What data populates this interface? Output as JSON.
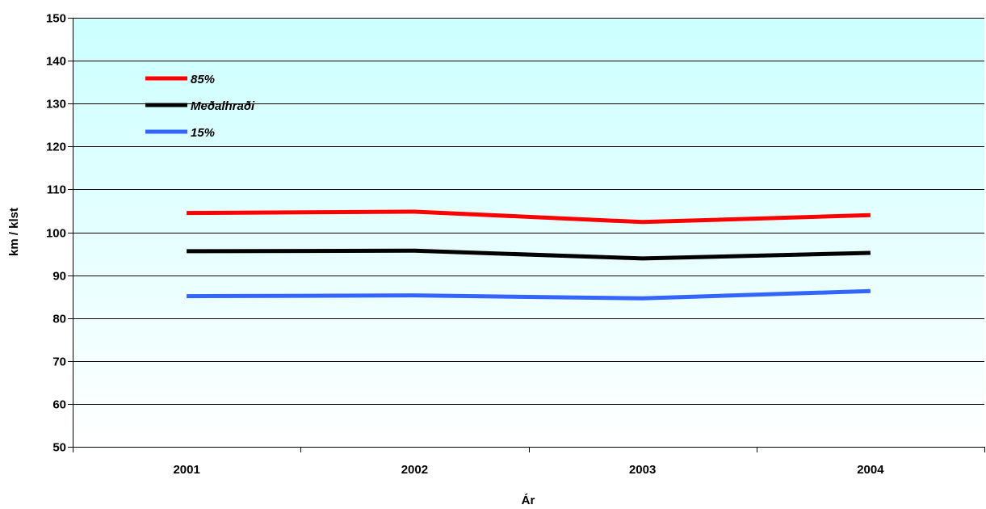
{
  "chart_data": {
    "type": "line",
    "title": "",
    "xlabel": "Ár",
    "ylabel": "km / klst",
    "ylim": [
      50,
      150
    ],
    "yticks": [
      "50",
      "60",
      "70",
      "80",
      "90",
      "100",
      "110",
      "120",
      "130",
      "140",
      "150"
    ],
    "categories": [
      "2001",
      "2002",
      "2003",
      "2004"
    ],
    "grid": true,
    "legend": "top-left",
    "series": [
      {
        "name": "85%",
        "color": "#ff0000",
        "values": [
          104.5,
          104.8,
          102.4,
          104.0
        ]
      },
      {
        "name": "Meðalhraði",
        "color": "#000000",
        "values": [
          95.6,
          95.7,
          93.9,
          95.2
        ]
      },
      {
        "name": "15%",
        "color": "#3366ff",
        "values": [
          85.1,
          85.3,
          84.6,
          86.3
        ]
      }
    ],
    "background": {
      "top": "#ccffff",
      "bottom": "#ffffff"
    }
  }
}
